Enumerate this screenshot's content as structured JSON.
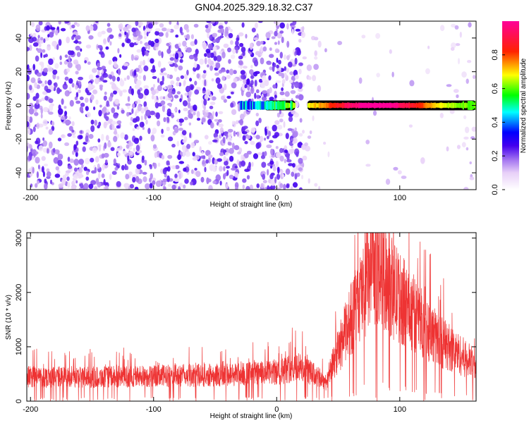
{
  "title": "GN04.2025.329.18.32.C37",
  "colors": {
    "snr_line": "#ee3333",
    "background": "#ffffff",
    "axis": "#000000"
  },
  "chart_data": [
    {
      "type": "heatmap",
      "xlabel": "Height of straight line (km)",
      "ylabel": "Frequency (Hz)",
      "xlim": [
        -203,
        162
      ],
      "ylim": [
        -50,
        50
      ],
      "xticks": [
        -200,
        -100,
        0,
        100
      ],
      "yticks": [
        -40,
        -20,
        0,
        20,
        40
      ],
      "colorbar": {
        "label": "Normalized spectral amplitude",
        "range": [
          0,
          1
        ],
        "ticks": [
          "0.0",
          "0.2",
          "0.4",
          "0.6",
          "0.8"
        ],
        "stops": [
          {
            "v": 0.0,
            "c": "#ffffff"
          },
          {
            "v": 0.1,
            "c": "#e8d0f8"
          },
          {
            "v": 0.18,
            "c": "#a070f0"
          },
          {
            "v": 0.26,
            "c": "#4400ee"
          },
          {
            "v": 0.34,
            "c": "#0000ff"
          },
          {
            "v": 0.46,
            "c": "#00ffff"
          },
          {
            "v": 0.56,
            "c": "#00ff00"
          },
          {
            "v": 0.68,
            "c": "#ffff00"
          },
          {
            "v": 0.82,
            "c": "#ff2200"
          },
          {
            "v": 1.0,
            "c": "#ff0099"
          }
        ]
      },
      "signal_band": {
        "freq_hz": 0,
        "x_start_km": -30,
        "x_end_km": 162,
        "peak_x_km": 80,
        "bright_segments": [
          [
            -10,
            15
          ],
          [
            25,
            162
          ]
        ]
      }
    },
    {
      "type": "line",
      "xlabel": "Height of straight line (km)",
      "ylabel": "SNR (10 * v/v)",
      "xlim": [
        -203,
        162
      ],
      "ylim": [
        0,
        3100
      ],
      "xticks": [
        -200,
        -100,
        0,
        100
      ],
      "yticks": [
        0,
        1000,
        2000,
        3000
      ],
      "envelope_km": [
        -203,
        -150,
        -100,
        -50,
        0,
        15,
        25,
        40,
        60,
        80,
        100,
        130,
        162
      ],
      "envelope_snr": [
        450,
        440,
        460,
        480,
        520,
        640,
        560,
        350,
        1500,
        2500,
        1900,
        1150,
        650
      ]
    }
  ]
}
